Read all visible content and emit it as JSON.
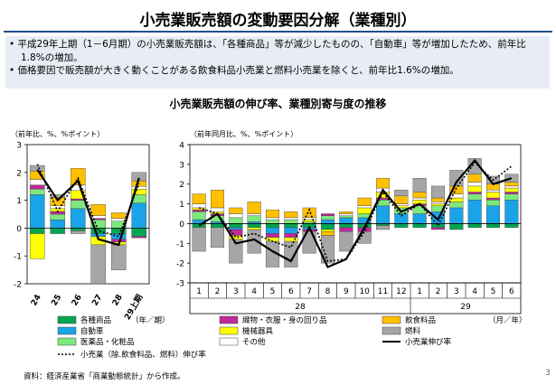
{
  "title": "小売業販売額の変動要因分解（業種別）",
  "bullets": [
    "• 平成29年上期（1－6月期）の小売業販売額は、「各種商品」等が減少したものの、「自動車」等が増加したため、前年比1.8%の増加。",
    "• 価格要因で販売額が大きく動くことがある飲食料品小売業と燃料小売業を除くと、前年比1.6%の増加。"
  ],
  "subtitle": "小売業販売額の伸び率、業種別寄与度の推移",
  "source": "資料：経済産業省「商業動態統計」から作成。",
  "page_number": "3",
  "colors": {
    "各種商品": "#00a651",
    "自動車": "#1aa3e8",
    "医薬品・化粧品": "#7ee87e",
    "織物・衣服・身の回り品": "#c0289b",
    "機械器具": "#ffff00",
    "その他": "#ffffff",
    "飲食料品": "#ffc000",
    "燃料": "#a6a6a6"
  },
  "legend": {
    "items": [
      "各種商品",
      "自動車",
      "医薬品・化粧品",
      "織物・衣服・身の回り品",
      "機械器具",
      "その他",
      "飲食料品",
      "燃料"
    ],
    "unit_left": "（年／期）",
    "unit_right": "（月／年）",
    "line_growth": "小売業伸び率",
    "line_ex": "小売業（除.飲食料品、燃料）伸び率"
  },
  "chart_data": [
    {
      "type": "bar",
      "stacked": true,
      "ylabel": "（前年比、%、%ポイント）",
      "ylim": [
        -2,
        3
      ],
      "categories": [
        "24",
        "25",
        "26",
        "27",
        "28",
        "29上期"
      ],
      "series": [
        {
          "name": "各種商品",
          "values": [
            -0.2,
            -0.2,
            -0.1,
            -0.2,
            -0.2,
            -0.3
          ]
        },
        {
          "name": "自動車",
          "values": [
            1.2,
            0.3,
            0.7,
            -0.1,
            -0.2,
            0.9
          ]
        },
        {
          "name": "医薬品・化粧品",
          "values": [
            0.2,
            0.2,
            0.3,
            0.3,
            0.25,
            0.3
          ]
        },
        {
          "name": "織物・衣服・身の回り品",
          "values": [
            0.15,
            0.1,
            0.05,
            0.05,
            -0.1,
            -0.05
          ]
        },
        {
          "name": "機械器具",
          "values": [
            -0.9,
            0.1,
            0.3,
            -0.3,
            -0.1,
            0.2
          ]
        },
        {
          "name": "その他",
          "values": [
            0.2,
            0.1,
            0.2,
            0.1,
            0.1,
            0.1
          ]
        },
        {
          "name": "飲食料品",
          "values": [
            0.3,
            0.3,
            0.6,
            0.4,
            0.2,
            0.2
          ]
        },
        {
          "name": "燃料",
          "values": [
            0.2,
            0.1,
            -0.1,
            -1.4,
            -0.9,
            0.3
          ]
        }
      ],
      "lines": [
        {
          "name": "小売業伸び率",
          "values": [
            2.1,
            1.0,
            1.7,
            -0.4,
            -0.6,
            1.8
          ]
        },
        {
          "name": "小売業（除.飲食料品、燃料）伸び率",
          "values": [
            2.3,
            0.6,
            1.8,
            -0.1,
            -0.3,
            1.6
          ]
        }
      ]
    },
    {
      "type": "bar",
      "stacked": true,
      "ylabel": "（前年同月比、%、%ポイント）",
      "ylim": [
        -3,
        4
      ],
      "categories": [
        "1",
        "2",
        "3",
        "4",
        "5",
        "6",
        "7",
        "8",
        "9",
        "10",
        "11",
        "12",
        "1",
        "2",
        "3",
        "4",
        "5",
        "6"
      ],
      "year_labels": [
        "28",
        "29"
      ],
      "series": [
        {
          "name": "各種商品",
          "values": [
            -0.2,
            -0.2,
            -0.2,
            -0.2,
            -0.2,
            -0.2,
            -0.2,
            -0.3,
            -0.2,
            -0.2,
            -0.1,
            -0.2,
            -0.2,
            -0.2,
            -0.3,
            -0.2,
            -0.2,
            -0.2
          ]
        },
        {
          "name": "自動車",
          "values": [
            0.2,
            0.1,
            -0.1,
            0.1,
            -0.3,
            -0.3,
            -0.1,
            0.2,
            0.3,
            0.3,
            0.9,
            0.5,
            0.5,
            0.6,
            0.8,
            1.2,
            0.9,
            1.2
          ]
        },
        {
          "name": "医薬品・化粧品",
          "values": [
            0.4,
            0.3,
            0.3,
            0.3,
            0.2,
            0.2,
            0.1,
            0.2,
            0.1,
            0.2,
            0.3,
            0.3,
            0.4,
            0.3,
            0.3,
            0.3,
            0.3,
            0.3
          ]
        },
        {
          "name": "織物・衣服・身の回り品",
          "values": [
            0.1,
            0.1,
            -0.3,
            0.0,
            -0.2,
            -0.2,
            -0.1,
            0.1,
            -0.2,
            -0.2,
            0.1,
            0.0,
            0.1,
            -0.1,
            0.0,
            0.1,
            0.1,
            0.1
          ]
        },
        {
          "name": "機械器具",
          "values": [
            0.1,
            0.1,
            -0.2,
            -0.1,
            -0.2,
            -0.2,
            0.1,
            -0.1,
            0.0,
            0.3,
            0.3,
            0.1,
            0.2,
            0.1,
            0.2,
            0.3,
            0.3,
            0.2
          ]
        },
        {
          "name": "その他",
          "values": [
            0.2,
            0.2,
            0.2,
            0.1,
            0.1,
            0.1,
            0.1,
            0.0,
            0.1,
            0.1,
            0.2,
            0.1,
            0.1,
            0.1,
            0.2,
            0.2,
            0.1,
            0.1
          ]
        },
        {
          "name": "飲食料品",
          "values": [
            0.5,
            0.9,
            0.3,
            0.6,
            0.4,
            0.3,
            0.5,
            -0.2,
            0.1,
            0.4,
            0.5,
            0.4,
            0.3,
            0.2,
            0.4,
            0.4,
            0.3,
            0.2
          ]
        },
        {
          "name": "燃料",
          "values": [
            -1.2,
            -1.0,
            -1.2,
            -1.2,
            -1.3,
            -1.3,
            -1.1,
            -1.4,
            -1.0,
            -0.6,
            -0.2,
            0.3,
            0.7,
            0.6,
            0.8,
            0.8,
            0.4,
            0.4
          ]
        }
      ],
      "lines": [
        {
          "name": "小売業伸び率",
          "values": [
            -0.1,
            0.5,
            -1.0,
            -0.8,
            -1.4,
            -1.9,
            -0.2,
            -2.2,
            -1.8,
            -0.2,
            1.7,
            0.6,
            1.0,
            0.2,
            2.1,
            3.2,
            2.0,
            2.3
          ]
        },
        {
          "name": "小売業（除.飲食料品、燃料）伸び率",
          "values": [
            0.8,
            0.5,
            -0.7,
            -0.5,
            -0.9,
            -1.2,
            0.7,
            -1.9,
            -1.8,
            -0.4,
            1.6,
            0.4,
            1.0,
            -0.1,
            1.8,
            3.1,
            2.2,
            2.9
          ]
        }
      ]
    }
  ]
}
